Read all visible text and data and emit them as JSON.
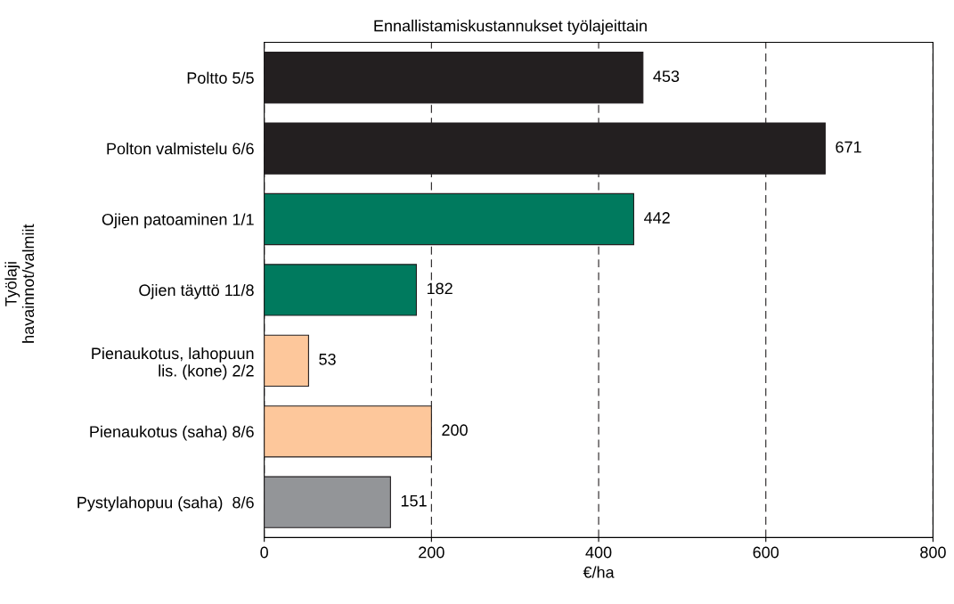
{
  "chart_data": {
    "type": "bar",
    "orientation": "horizontal",
    "title": "Ennallistamiskustannukset työlajeittain",
    "xlabel": "€/ha",
    "ylabel": "Työlaji\nhavainnot/valmiit",
    "categories": [
      "Poltto 5/5",
      "Polton valmistelu 6/6",
      "Ojien patoaminen 1/1",
      "Ojien täyttö 11/8",
      "Pienaukotus, lahopuun\nlis. (kone) 2/2",
      "Pienaukotus (saha) 8/6",
      "Pystylahopuu (saha)  8/6"
    ],
    "values": [
      453,
      671,
      442,
      182,
      53,
      200,
      151
    ],
    "colors": [
      "#231f20",
      "#231f20",
      "#007a5e",
      "#007a5e",
      "#fdc79b",
      "#fdc79b",
      "#939598"
    ],
    "data_labels": true,
    "xlim": [
      0,
      800
    ],
    "xticks": [
      0,
      200,
      400,
      600,
      800
    ],
    "grid": "x"
  }
}
